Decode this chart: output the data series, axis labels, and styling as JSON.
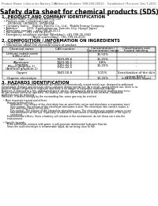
{
  "title": "Safety data sheet for chemical products (SDS)",
  "header_left": "Product Name: Lithium Ion Battery Cell",
  "header_right": "Reference Number: 999-049-00010\nEstablished / Revision: Dec.7,2010",
  "section1_title": "1. PRODUCT AND COMPANY IDENTIFICATION",
  "section1_lines": [
    "  • Product name: Lithium Ion Battery Cell",
    "  • Product code: Cylindrical-type cell",
    "       UR18650J, UR18650L, UR18650A",
    "  • Company name:    Battery Electric Co., Ltd.,  Mobile Energy Company",
    "  • Address:          2201  Kaminakamura, Sumoto-City, Hyogo, Japan",
    "  • Telephone number:   +81-799-26-4111",
    "  • Fax number:   +81-799-26-4121",
    "  • Emergency telephone number (Weekday): +81-799-26-3942",
    "                                  (Night and holiday): +81-799-26-4101"
  ],
  "section2_title": "2. COMPOSITION / INFORMATION ON INGREDIENTS",
  "section2_intro": "  • Substance or preparation: Preparation",
  "section2_sub": "  • Information about the chemical nature of product:",
  "table_headers": [
    "Chemical name",
    "CAS number",
    "Concentration /\nConcentration range",
    "Classification and\nhazard labeling"
  ],
  "table_rows": [
    [
      "Lithium cobalt oxide\n(LiMn₂CoO₂)",
      "-",
      "30-50%",
      "-"
    ],
    [
      "Iron",
      "7439-89-6",
      "15-25%",
      "-"
    ],
    [
      "Aluminum",
      "7429-90-5",
      "2-8%",
      "-"
    ],
    [
      "Graphite\n(Meso-graphite-1)\n(Artificial graphite-1)",
      "7782-42-5\n7782-42-5",
      "10-20%",
      "-"
    ],
    [
      "Copper",
      "7440-50-8",
      "5-15%",
      "Sensitization of the skin group R43-2"
    ],
    [
      "Organic electrolyte",
      "-",
      "10-20%",
      "Inflammable liquid"
    ]
  ],
  "section3_title": "3. HAZARDS IDENTIFICATION",
  "section3_body": [
    "For the battery cell, chemical materials are stored in a hermetically sealed metal case, designed to withstand",
    "temperature changes and pressure-stress-corrosion during normal use. As a result, during normal use, there is no",
    "physical danger of ignition or explosion and there is no danger of hazardous materials leakage.",
    "However, if exposed to a fire, added mechanical shocks, decomposed, when electrolyte shorting may occur.",
    "As gas release cannot be operated. The battery cell case will be breached at the extreme. Hazardous",
    "materials may be released.",
    "Moreover, if heated strongly by the surrounding fire, some gas may be emitted.",
    "",
    "  • Most important hazard and effects:",
    "       Human health effects:",
    "           Inhalation: The release of the electrolyte has an anesthetic action and stimulates a respiratory tract.",
    "           Skin contact: The release of the electrolyte stimulates a skin. The electrolyte skin contact causes a",
    "           sore and stimulation on the skin.",
    "           Eye contact: The release of the electrolyte stimulates eyes. The electrolyte eye contact causes a sore",
    "           and stimulation on the eye. Especially, a substance that causes a strong inflammation of the eyes is",
    "           contained.",
    "       Environmental effects: Since a battery cell remains in the environment, do not throw out it into the",
    "       environment.",
    "",
    "  • Specific hazards:",
    "       If the electrolyte contacts with water, it will generate detrimental hydrogen fluoride.",
    "       Since the used electrolyte is inflammable liquid, do not bring close to fire."
  ],
  "bg_color": "#ffffff",
  "text_color": "#000000",
  "header_line_color": "#000000",
  "title_fontsize": 5.5,
  "body_fontsize": 3.2,
  "section_fontsize": 3.8,
  "table_fontsize": 2.8
}
